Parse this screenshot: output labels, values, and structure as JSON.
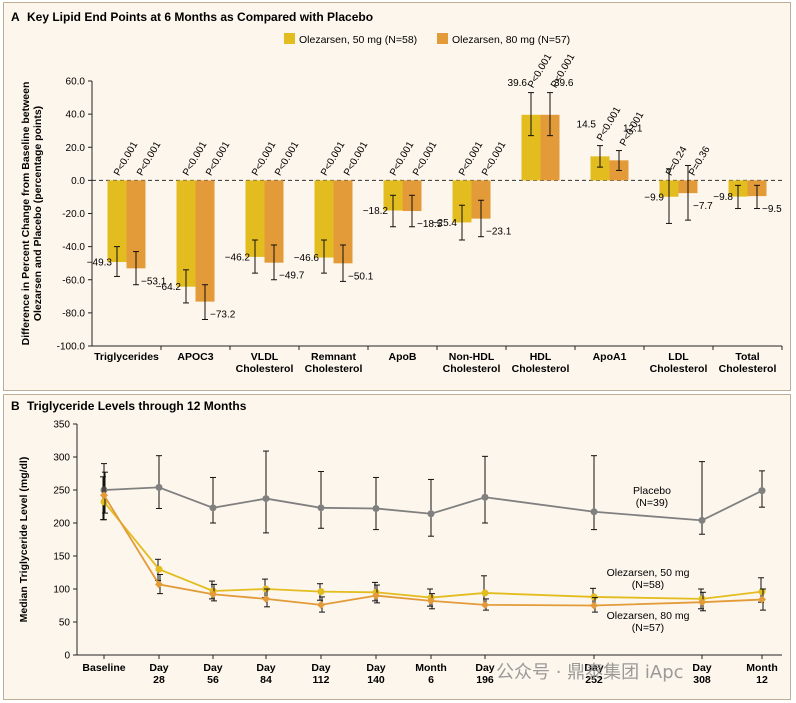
{
  "colors": {
    "olez50": "#e3bd20",
    "olez80": "#e39a38",
    "placebo": "#808080",
    "panel_bg": "#fdf6ec",
    "axis": "#222222"
  },
  "chart_data": [
    {
      "panel": "A",
      "type": "bar",
      "title": "Key Lipid End Points at 6 Months as Compared with Placebo",
      "ylabel": "Difference in Percent Change from Baseline between Olezarsen and Placebo (percentage points)",
      "ylim": [
        -100,
        60
      ],
      "yticks": [
        60,
        40,
        20,
        0,
        -20,
        -40,
        -60,
        -80,
        -100
      ],
      "ytick_labels": [
        "60.0",
        "40.0",
        "20.0",
        "0.0",
        "-20.0",
        "-40.0",
        "-60.0",
        "-80.0",
        "-100.0"
      ],
      "legend": [
        "Olezarsen, 50 mg (N=58)",
        "Olezarsen, 80 mg (N=57)"
      ],
      "categories": [
        [
          "Triglycerides"
        ],
        [
          "APOC3"
        ],
        [
          "VLDL",
          "Cholesterol"
        ],
        [
          "Remnant",
          "Cholesterol"
        ],
        [
          "ApoB"
        ],
        [
          "Non-HDL",
          "Cholesterol"
        ],
        [
          "HDL",
          "Cholesterol"
        ],
        [
          "ApoA1"
        ],
        [
          "LDL",
          "Cholesterol"
        ],
        [
          "Total",
          "Cholesterol"
        ]
      ],
      "series": [
        {
          "name": "Olezarsen, 50 mg (N=58)",
          "values": [
            -49.3,
            -64.2,
            -46.2,
            -46.6,
            -18.2,
            -25.4,
            39.6,
            14.5,
            -9.9,
            -9.8
          ],
          "labels": [
            "−49.3",
            "−64.2",
            "−46.2",
            "−46.6",
            "−18.2",
            "−25.4",
            "39.6",
            "14.5",
            "−9.9",
            "−9.8"
          ],
          "ci_low": [
            -58,
            -74,
            -56,
            -56,
            -28,
            -36,
            27,
            8,
            -26,
            -17
          ],
          "ci_high": [
            -40,
            -54,
            -36,
            -36,
            -9,
            -15,
            53,
            21,
            7,
            -3
          ],
          "p_values": [
            "P<0.001",
            "P<0.001",
            "P<0.001",
            "P<0.001",
            "P<0.001",
            "P<0.001",
            "P<0.001",
            "P<0.001",
            "P=0.24",
            ""
          ]
        },
        {
          "name": "Olezarsen, 80 mg (N=57)",
          "values": [
            -53.1,
            -73.2,
            -49.7,
            -50.1,
            -18.5,
            -23.1,
            39.6,
            12.1,
            -7.7,
            -9.5
          ],
          "labels": [
            "−53.1",
            "−73.2",
            "−49.7",
            "−50.1",
            "−18.5",
            "−23.1",
            "39.6",
            "12.1",
            "−7.7",
            "−9.5"
          ],
          "ci_low": [
            -63,
            -84,
            -60,
            -61,
            -28,
            -34,
            27,
            6,
            -24,
            -17
          ],
          "ci_high": [
            -43,
            -63,
            -39,
            -39,
            -9,
            -12,
            53,
            18,
            9,
            -3
          ],
          "p_values": [
            "P<0.001",
            "P<0.001",
            "P<0.001",
            "P<0.001",
            "P<0.001",
            "P<0.001",
            "P<0.001",
            "P<0.001",
            "P=0.36",
            ""
          ]
        }
      ]
    },
    {
      "panel": "B",
      "type": "line",
      "title": "Triglyceride Levels through 12 Months",
      "ylabel": "Median Triglyceride Level (mg/dl)",
      "ylim": [
        0,
        350
      ],
      "yticks": [
        0,
        50,
        100,
        150,
        200,
        250,
        300,
        350
      ],
      "ytick_labels": [
        "0",
        "50",
        "100",
        "150",
        "200",
        "250",
        "300",
        "350"
      ],
      "categories": [
        [
          "Baseline"
        ],
        [
          "Day",
          "28"
        ],
        [
          "Day",
          "56"
        ],
        [
          "Day",
          "84"
        ],
        [
          "Day",
          "112"
        ],
        [
          "Day",
          "140"
        ],
        [
          "Month",
          "6"
        ],
        [
          "Day",
          "196"
        ],
        [
          "Day",
          "252"
        ],
        [
          "Day",
          "308"
        ],
        [
          "Month",
          "12"
        ]
      ],
      "series": [
        {
          "name": "Placebo",
          "label": [
            "Placebo",
            "(N=39)"
          ],
          "values": [
            250,
            254,
            223,
            237,
            223,
            222,
            214,
            239,
            217,
            204,
            249
          ],
          "ci_low": [
            205,
            222,
            200,
            185,
            192,
            190,
            180,
            200,
            190,
            183,
            224
          ],
          "ci_high": [
            290,
            302,
            269,
            309,
            278,
            269,
            266,
            301,
            302,
            293,
            279
          ]
        },
        {
          "name": "Olezarsen, 50 mg",
          "label": [
            "Olezarsen, 50 mg",
            "(N=58)"
          ],
          "values": [
            232,
            130,
            97,
            100,
            96,
            95,
            87,
            94,
            88,
            85,
            96
          ],
          "ci_low": [
            205,
            113,
            85,
            87,
            83,
            82,
            74,
            76,
            75,
            70,
            80
          ],
          "ci_high": [
            270,
            145,
            112,
            115,
            108,
            110,
            100,
            120,
            101,
            100,
            117
          ]
        },
        {
          "name": "Olezarsen, 80 mg",
          "label": [
            "Olezarsen, 80 mg",
            "(N=57)"
          ],
          "values": [
            242,
            107,
            92,
            85,
            76,
            90,
            82,
            76,
            75,
            80,
            84
          ],
          "ci_low": [
            215,
            93,
            82,
            73,
            65,
            79,
            70,
            68,
            65,
            67,
            68
          ],
          "ci_high": [
            277,
            122,
            107,
            100,
            88,
            106,
            93,
            85,
            87,
            95,
            100
          ]
        }
      ]
    }
  ],
  "watermark": "公众号 · 鼎泰集团 iApc"
}
